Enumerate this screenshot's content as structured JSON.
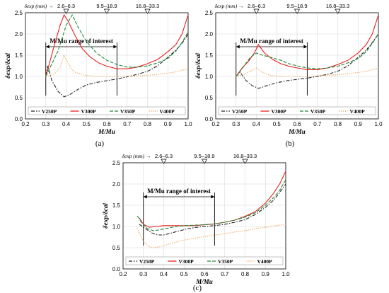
{
  "figure": {
    "panels": [
      {
        "panel_label": "(a)"
      },
      {
        "panel_label": "(b)"
      },
      {
        "panel_label": "(c)"
      }
    ],
    "colors": {
      "V250P": "#222222",
      "V300P": "#e8201e",
      "V350P": "#1e8a3a",
      "V400P": "#f0a050"
    }
  },
  "chart_data": [
    {
      "type": "line",
      "panel": "(a)",
      "xlabel": "M/Mu",
      "ylabel": "δexp/δcal",
      "xlim": [
        0.2,
        1.0
      ],
      "ylim": [
        0.0,
        2.5
      ],
      "xticks": [
        "0.2",
        "0.3",
        "0.4",
        "0.5",
        "0.6",
        "0.7",
        "0.8",
        "0.9",
        "1.0"
      ],
      "yticks": [
        "0.0",
        "0.5",
        "1.0",
        "1.5",
        "2.0",
        "2.5"
      ],
      "top_axis_title": "δexp (mm) →",
      "top_markers": [
        {
          "x": 0.4,
          "label": "2.6–6.3"
        },
        {
          "x": 0.6,
          "label": "9.5–18.9"
        },
        {
          "x": 0.8,
          "label": "16.8–33.3"
        }
      ],
      "range_of_interest": {
        "label": "M/Mu range of interest",
        "x": [
          0.3,
          0.65
        ]
      },
      "legend": [
        "V250P",
        "V300P",
        "V350P",
        "V400P"
      ],
      "series": [
        {
          "name": "V250P",
          "style": "dashdot",
          "points": [
            [
              0.3,
              1.02
            ],
            [
              0.31,
              1.25
            ],
            [
              0.33,
              0.9
            ],
            [
              0.36,
              0.65
            ],
            [
              0.39,
              0.52
            ],
            [
              0.42,
              0.58
            ],
            [
              0.46,
              0.7
            ],
            [
              0.5,
              0.8
            ],
            [
              0.55,
              0.86
            ],
            [
              0.6,
              0.9
            ],
            [
              0.65,
              0.94
            ],
            [
              0.7,
              0.99
            ],
            [
              0.75,
              1.05
            ],
            [
              0.8,
              1.12
            ],
            [
              0.85,
              1.25
            ],
            [
              0.9,
              1.45
            ],
            [
              0.94,
              1.62
            ],
            [
              0.97,
              1.78
            ],
            [
              1.0,
              2.0
            ]
          ]
        },
        {
          "name": "V300P",
          "style": "solid",
          "points": [
            [
              0.3,
              1.0
            ],
            [
              0.34,
              1.7
            ],
            [
              0.37,
              2.2
            ],
            [
              0.39,
              2.45
            ],
            [
              0.41,
              2.3
            ],
            [
              0.44,
              2.0
            ],
            [
              0.48,
              1.65
            ],
            [
              0.52,
              1.45
            ],
            [
              0.56,
              1.32
            ],
            [
              0.6,
              1.24
            ],
            [
              0.65,
              1.18
            ],
            [
              0.7,
              1.18
            ],
            [
              0.75,
              1.22
            ],
            [
              0.8,
              1.3
            ],
            [
              0.85,
              1.4
            ],
            [
              0.9,
              1.58
            ],
            [
              0.94,
              1.75
            ],
            [
              0.97,
              2.0
            ],
            [
              1.0,
              2.45
            ]
          ]
        },
        {
          "name": "V350P",
          "style": "dash",
          "points": [
            [
              0.3,
              1.0
            ],
            [
              0.36,
              1.6
            ],
            [
              0.4,
              2.2
            ],
            [
              0.43,
              2.45
            ],
            [
              0.46,
              2.15
            ],
            [
              0.5,
              1.82
            ],
            [
              0.55,
              1.55
            ],
            [
              0.6,
              1.38
            ],
            [
              0.65,
              1.28
            ],
            [
              0.7,
              1.22
            ],
            [
              0.75,
              1.22
            ],
            [
              0.8,
              1.25
            ],
            [
              0.85,
              1.32
            ],
            [
              0.9,
              1.42
            ],
            [
              0.94,
              1.6
            ],
            [
              0.97,
              1.8
            ],
            [
              1.0,
              2.05
            ]
          ]
        },
        {
          "name": "V400P",
          "style": "dot",
          "points": [
            [
              0.3,
              1.0
            ],
            [
              0.34,
              1.05
            ],
            [
              0.37,
              1.2
            ],
            [
              0.39,
              1.5
            ],
            [
              0.41,
              1.3
            ],
            [
              0.44,
              1.1
            ],
            [
              0.5,
              1.02
            ],
            [
              0.56,
              1.0
            ],
            [
              0.62,
              1.0
            ],
            [
              0.7,
              1.0
            ],
            [
              0.78,
              1.02
            ],
            [
              0.86,
              1.05
            ],
            [
              0.93,
              1.1
            ],
            [
              1.0,
              1.18
            ]
          ]
        }
      ]
    },
    {
      "type": "line",
      "panel": "(b)",
      "xlabel": "M/Mu",
      "ylabel": "δexp/δcal",
      "xlim": [
        0.2,
        1.0
      ],
      "ylim": [
        0.0,
        2.5
      ],
      "xticks": [
        "0.2",
        "0.3",
        "0.4",
        "0.5",
        "0.6",
        "0.7",
        "0.8",
        "0.9",
        "1.0"
      ],
      "yticks": [
        "0.0",
        "0.5",
        "1.0",
        "1.5",
        "2.0",
        "2.5"
      ],
      "top_axis_title": "δexp (mm) →",
      "top_markers": [
        {
          "x": 0.4,
          "label": "2.6–6.3"
        },
        {
          "x": 0.6,
          "label": "9.5–18.9"
        },
        {
          "x": 0.8,
          "label": "16.8–33.3"
        }
      ],
      "range_of_interest": {
        "label": "M/Mu range of interest",
        "x": [
          0.3,
          0.65
        ]
      },
      "legend": [
        "V250P",
        "V300P",
        "V350P",
        "V400P"
      ],
      "series": [
        {
          "name": "V250P",
          "style": "dashdot",
          "points": [
            [
              0.3,
              1.0
            ],
            [
              0.32,
              1.1
            ],
            [
              0.35,
              0.9
            ],
            [
              0.38,
              0.78
            ],
            [
              0.41,
              0.72
            ],
            [
              0.45,
              0.78
            ],
            [
              0.5,
              0.85
            ],
            [
              0.55,
              0.9
            ],
            [
              0.6,
              0.93
            ],
            [
              0.65,
              0.96
            ],
            [
              0.7,
              1.0
            ],
            [
              0.75,
              1.05
            ],
            [
              0.8,
              1.12
            ],
            [
              0.85,
              1.25
            ],
            [
              0.9,
              1.45
            ],
            [
              0.94,
              1.62
            ],
            [
              0.97,
              1.8
            ],
            [
              1.0,
              2.0
            ]
          ]
        },
        {
          "name": "V300P",
          "style": "solid",
          "points": [
            [
              0.3,
              1.0
            ],
            [
              0.33,
              1.2
            ],
            [
              0.36,
              1.35
            ],
            [
              0.39,
              1.55
            ],
            [
              0.41,
              1.75
            ],
            [
              0.44,
              1.55
            ],
            [
              0.48,
              1.4
            ],
            [
              0.52,
              1.3
            ],
            [
              0.56,
              1.24
            ],
            [
              0.6,
              1.2
            ],
            [
              0.65,
              1.16
            ],
            [
              0.7,
              1.16
            ],
            [
              0.75,
              1.2
            ],
            [
              0.8,
              1.28
            ],
            [
              0.85,
              1.38
            ],
            [
              0.9,
              1.55
            ],
            [
              0.94,
              1.75
            ],
            [
              0.97,
              2.0
            ],
            [
              1.0,
              2.45
            ]
          ]
        },
        {
          "name": "V350P",
          "style": "dash",
          "points": [
            [
              0.3,
              1.0
            ],
            [
              0.34,
              1.25
            ],
            [
              0.37,
              1.45
            ],
            [
              0.4,
              1.55
            ],
            [
              0.43,
              1.5
            ],
            [
              0.47,
              1.45
            ],
            [
              0.52,
              1.38
            ],
            [
              0.56,
              1.3
            ],
            [
              0.6,
              1.25
            ],
            [
              0.65,
              1.2
            ],
            [
              0.7,
              1.18
            ],
            [
              0.75,
              1.2
            ],
            [
              0.8,
              1.24
            ],
            [
              0.85,
              1.32
            ],
            [
              0.9,
              1.42
            ],
            [
              0.94,
              1.58
            ],
            [
              0.97,
              1.78
            ],
            [
              1.0,
              2.0
            ]
          ]
        },
        {
          "name": "V400P",
          "style": "dot",
          "points": [
            [
              0.3,
              1.0
            ],
            [
              0.34,
              1.05
            ],
            [
              0.37,
              1.12
            ],
            [
              0.4,
              1.2
            ],
            [
              0.43,
              1.1
            ],
            [
              0.47,
              1.02
            ],
            [
              0.52,
              1.0
            ],
            [
              0.58,
              1.0
            ],
            [
              0.65,
              1.0
            ],
            [
              0.72,
              1.02
            ],
            [
              0.8,
              1.04
            ],
            [
              0.88,
              1.08
            ],
            [
              0.94,
              1.12
            ],
            [
              1.0,
              1.2
            ]
          ]
        }
      ]
    },
    {
      "type": "line",
      "panel": "(c)",
      "xlabel": "M/Mu",
      "ylabel": "δexp/δcal",
      "xlim": [
        0.2,
        1.0
      ],
      "ylim": [
        0.0,
        2.5
      ],
      "xticks": [
        "0.2",
        "0.3",
        "0.4",
        "0.5",
        "0.6",
        "0.7",
        "0.8",
        "0.9",
        "1.0"
      ],
      "yticks": [
        "0.0",
        "0.5",
        "1.0",
        "1.5",
        "2.0",
        "2.5"
      ],
      "top_axis_title": "δexp (mm) →",
      "top_markers": [
        {
          "x": 0.4,
          "label": "2.6–6.3"
        },
        {
          "x": 0.6,
          "label": "9.5–18.9"
        },
        {
          "x": 0.8,
          "label": "16.8–33.3"
        }
      ],
      "range_of_interest": {
        "label": "M/Mu range of interest",
        "x": [
          0.3,
          0.65
        ]
      },
      "legend": [
        "V250P",
        "V300P",
        "V350P",
        "V400P"
      ],
      "series": [
        {
          "name": "V250P",
          "style": "dashdot",
          "points": [
            [
              0.28,
              1.05
            ],
            [
              0.31,
              0.95
            ],
            [
              0.34,
              0.85
            ],
            [
              0.37,
              0.8
            ],
            [
              0.4,
              0.8
            ],
            [
              0.44,
              0.85
            ],
            [
              0.48,
              0.9
            ],
            [
              0.52,
              0.95
            ],
            [
              0.56,
              0.98
            ],
            [
              0.6,
              1.0
            ],
            [
              0.65,
              1.02
            ],
            [
              0.7,
              1.05
            ],
            [
              0.75,
              1.1
            ],
            [
              0.8,
              1.16
            ],
            [
              0.85,
              1.28
            ],
            [
              0.9,
              1.45
            ],
            [
              0.94,
              1.62
            ],
            [
              0.97,
              1.8
            ],
            [
              1.0,
              2.0
            ]
          ]
        },
        {
          "name": "V300P",
          "style": "solid",
          "points": [
            [
              0.28,
              1.2
            ],
            [
              0.3,
              1.05
            ],
            [
              0.33,
              0.98
            ],
            [
              0.36,
              1.0
            ],
            [
              0.4,
              1.02
            ],
            [
              0.45,
              1.02
            ],
            [
              0.5,
              1.02
            ],
            [
              0.55,
              1.02
            ],
            [
              0.6,
              1.04
            ],
            [
              0.65,
              1.06
            ],
            [
              0.7,
              1.1
            ],
            [
              0.75,
              1.15
            ],
            [
              0.8,
              1.24
            ],
            [
              0.85,
              1.35
            ],
            [
              0.9,
              1.55
            ],
            [
              0.94,
              1.78
            ],
            [
              0.97,
              2.0
            ],
            [
              1.0,
              2.3
            ]
          ]
        },
        {
          "name": "V350P",
          "style": "dash",
          "points": [
            [
              0.27,
              1.25
            ],
            [
              0.29,
              1.1
            ],
            [
              0.32,
              0.95
            ],
            [
              0.35,
              0.9
            ],
            [
              0.38,
              0.92
            ],
            [
              0.42,
              0.96
            ],
            [
              0.46,
              1.0
            ],
            [
              0.5,
              1.02
            ],
            [
              0.55,
              1.03
            ],
            [
              0.6,
              1.04
            ],
            [
              0.65,
              1.06
            ],
            [
              0.7,
              1.1
            ],
            [
              0.75,
              1.15
            ],
            [
              0.8,
              1.22
            ],
            [
              0.85,
              1.32
            ],
            [
              0.9,
              1.5
            ],
            [
              0.94,
              1.68
            ],
            [
              0.97,
              1.85
            ],
            [
              1.0,
              2.1
            ]
          ]
        },
        {
          "name": "V400P",
          "style": "dot",
          "points": [
            [
              0.27,
              0.95
            ],
            [
              0.3,
              0.65
            ],
            [
              0.33,
              0.52
            ],
            [
              0.36,
              0.5
            ],
            [
              0.4,
              0.55
            ],
            [
              0.45,
              0.62
            ],
            [
              0.5,
              0.68
            ],
            [
              0.55,
              0.72
            ],
            [
              0.6,
              0.76
            ],
            [
              0.65,
              0.8
            ],
            [
              0.7,
              0.83
            ],
            [
              0.75,
              0.87
            ],
            [
              0.8,
              0.9
            ],
            [
              0.85,
              0.95
            ],
            [
              0.9,
              0.98
            ],
            [
              0.95,
              1.02
            ],
            [
              1.0,
              1.05
            ]
          ]
        }
      ]
    }
  ]
}
